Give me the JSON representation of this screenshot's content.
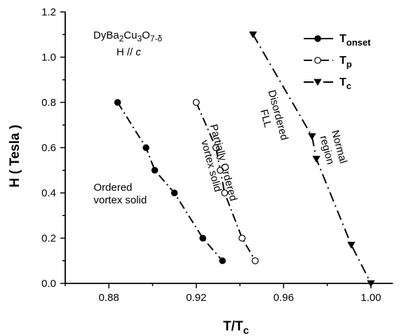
{
  "chart_data": {
    "type": "scatter",
    "xlabel": {
      "main": "T/T",
      "sub": "c"
    },
    "ylabel": "H ( Tesla )",
    "xlim": [
      0.86,
      1.01
    ],
    "ylim": [
      0.0,
      1.2
    ],
    "x_ticks": [
      "0.88",
      "0.92",
      "0.96",
      "1.00"
    ],
    "x_tick_values": [
      0.88,
      0.92,
      0.96,
      1.0
    ],
    "y_ticks": [
      "0.0",
      "0.2",
      "0.4",
      "0.6",
      "0.8",
      "1.0",
      "1.2"
    ],
    "y_tick_values": [
      0.0,
      0.2,
      0.4,
      0.6,
      0.8,
      1.0,
      1.2
    ],
    "grid": false,
    "legend_position": "top-right",
    "sample_label": {
      "formula": "DyBa2Cu3O7-δ",
      "field_prefix": "H // ",
      "field_axis": "c"
    },
    "series": [
      {
        "name": "T_onset",
        "legend_main": "T",
        "legend_sub": "onset",
        "marker": "filled-circle",
        "x": [
          0.884,
          0.897,
          0.901,
          0.91,
          0.923,
          0.932
        ],
        "y": [
          0.8,
          0.6,
          0.5,
          0.4,
          0.2,
          0.1
        ]
      },
      {
        "name": "T_p",
        "legend_main": "T",
        "legend_sub": "p",
        "marker": "open-circle",
        "x": [
          0.92,
          0.929,
          0.931,
          0.933,
          0.941,
          0.947
        ],
        "y": [
          0.8,
          0.6,
          0.5,
          0.4,
          0.2,
          0.1
        ]
      },
      {
        "name": "T_c",
        "legend_main": "T",
        "legend_sub": "c",
        "marker": "filled-triangle-down",
        "x": [
          0.946,
          0.973,
          0.975,
          0.991,
          1.0
        ],
        "y": [
          1.1,
          0.65,
          0.55,
          0.17,
          0.0
        ]
      }
    ],
    "region_labels": [
      {
        "lines": [
          "Ordered",
          "vortex solid"
        ],
        "x": 0.873,
        "y": 0.41,
        "angle": 0
      },
      {
        "lines": [
          "Partially Ordered",
          "vortex solid"
        ],
        "x": 0.931,
        "y": 0.53,
        "angle": 75
      },
      {
        "lines": [
          "Disordered",
          "FLL"
        ],
        "x": 0.956,
        "y": 0.74,
        "angle": 75
      },
      {
        "lines": [
          "Normal",
          "region"
        ],
        "x": 0.984,
        "y": 0.6,
        "angle": 75
      }
    ]
  }
}
